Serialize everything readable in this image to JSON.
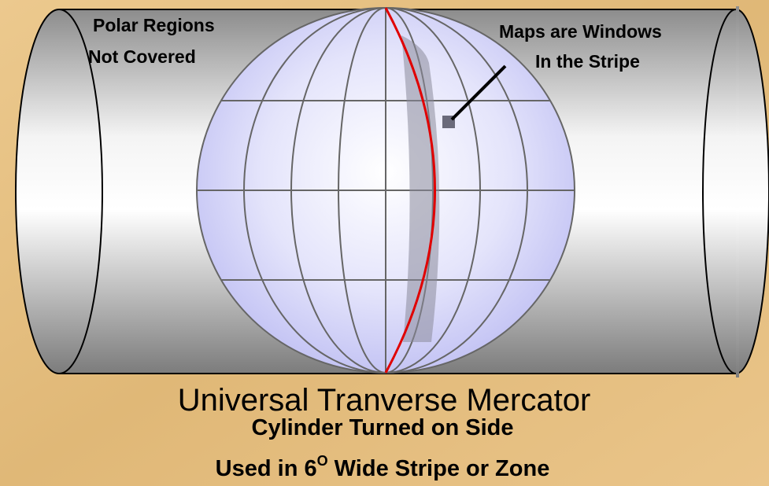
{
  "labels": {
    "polar_line1": "Polar Regions",
    "polar_line2": "Not Covered",
    "maps_line1": "Maps are Windows",
    "maps_line2": "In the Stripe"
  },
  "title": "Universal Tranverse Mercator",
  "subtitle": "Cylinder Turned on Side",
  "caption": {
    "before": "Used in 6",
    "superscript": "O",
    "after": " Wide Stripe or Zone"
  }
}
